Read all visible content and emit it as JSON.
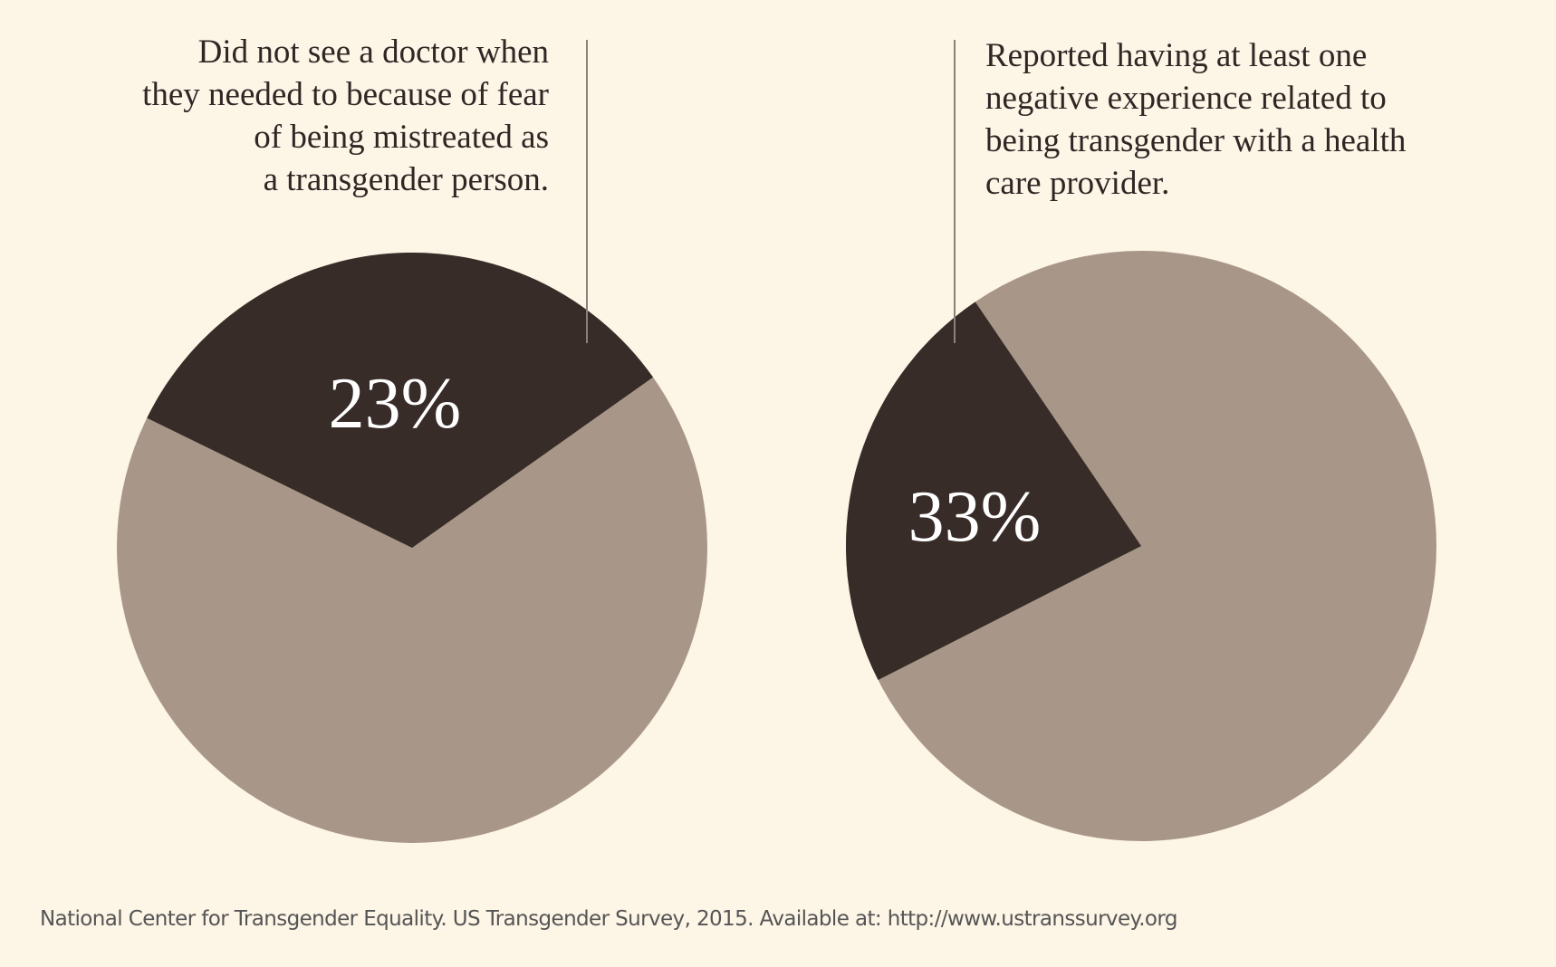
{
  "colors": {
    "background": "#fdf5e6",
    "highlight": "#382c28",
    "remainder": "#a89788",
    "label": "#ffffff"
  },
  "chart_data": [
    {
      "type": "pie",
      "title_lines": [
        "Did not see a doctor when",
        "they needed to because of fear",
        "of being mistreated as",
        "a transgender person."
      ],
      "slices": [
        {
          "value": 23,
          "label": "23%",
          "color": "#382c28"
        },
        {
          "value": 77,
          "label": "",
          "color": "#a89788"
        }
      ]
    },
    {
      "type": "pie",
      "title_lines": [
        "Reported having at least one",
        "negative experience related to",
        "being transgender with a health",
        "care provider."
      ],
      "slices": [
        {
          "value": 33,
          "label": "33%",
          "color": "#382c28"
        },
        {
          "value": 67,
          "label": "",
          "color": "#a89788"
        }
      ]
    }
  ],
  "footer": "National Center for Transgender Equality. US Transgender Survey, 2015. Available at: http://www.ustranssurvey.org"
}
